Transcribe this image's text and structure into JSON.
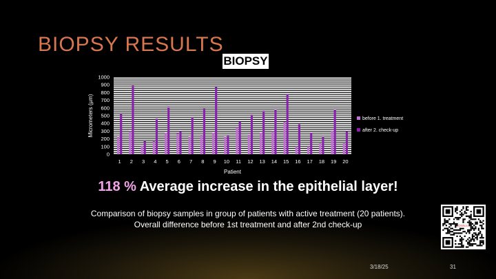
{
  "slide": {
    "title": "BIOPSY RESULTS",
    "headline_pct": "118 %",
    "headline_text": " Average increase in the epithelial layer!",
    "caption_line1": "Comparison of biopsy samples in group of patients with active treatment (20 patients).",
    "caption_line2": "Overall difference before 1st treatment and after 2nd check-up",
    "footer_date": "3/18/25",
    "footer_page": "31",
    "qr_label": "QR code"
  },
  "colors": {
    "title": "#d7774f",
    "bar_before": "#c070d0",
    "bar_after": "#8a1fb0",
    "headline_pct": "#f2a3ea"
  },
  "chart_data": {
    "type": "bar",
    "title": "BIOPSY",
    "xlabel": "Patient",
    "ylabel": "Micrometers (µm)",
    "ylim": [
      0,
      1000
    ],
    "yticks": [
      0,
      100,
      200,
      300,
      400,
      500,
      600,
      700,
      800,
      900,
      1000
    ],
    "categories": [
      "1",
      "2",
      "3",
      "4",
      "5",
      "6",
      "7",
      "8",
      "9",
      "10",
      "11",
      "12",
      "13",
      "14",
      "15",
      "16",
      "17",
      "18",
      "19",
      "20"
    ],
    "series": [
      {
        "name": "before 1. treatment",
        "values": [
          230,
          300,
          110,
          170,
          280,
          270,
          230,
          250,
          280,
          230,
          350,
          260,
          280,
          300,
          420,
          100,
          100,
          140,
          310,
          140
        ]
      },
      {
        "name": "after 2. check-up",
        "values": [
          520,
          890,
          170,
          460,
          610,
          300,
          480,
          590,
          870,
          240,
          420,
          510,
          560,
          580,
          780,
          390,
          280,
          230,
          580,
          300
        ]
      }
    ],
    "legend_position": "right"
  }
}
